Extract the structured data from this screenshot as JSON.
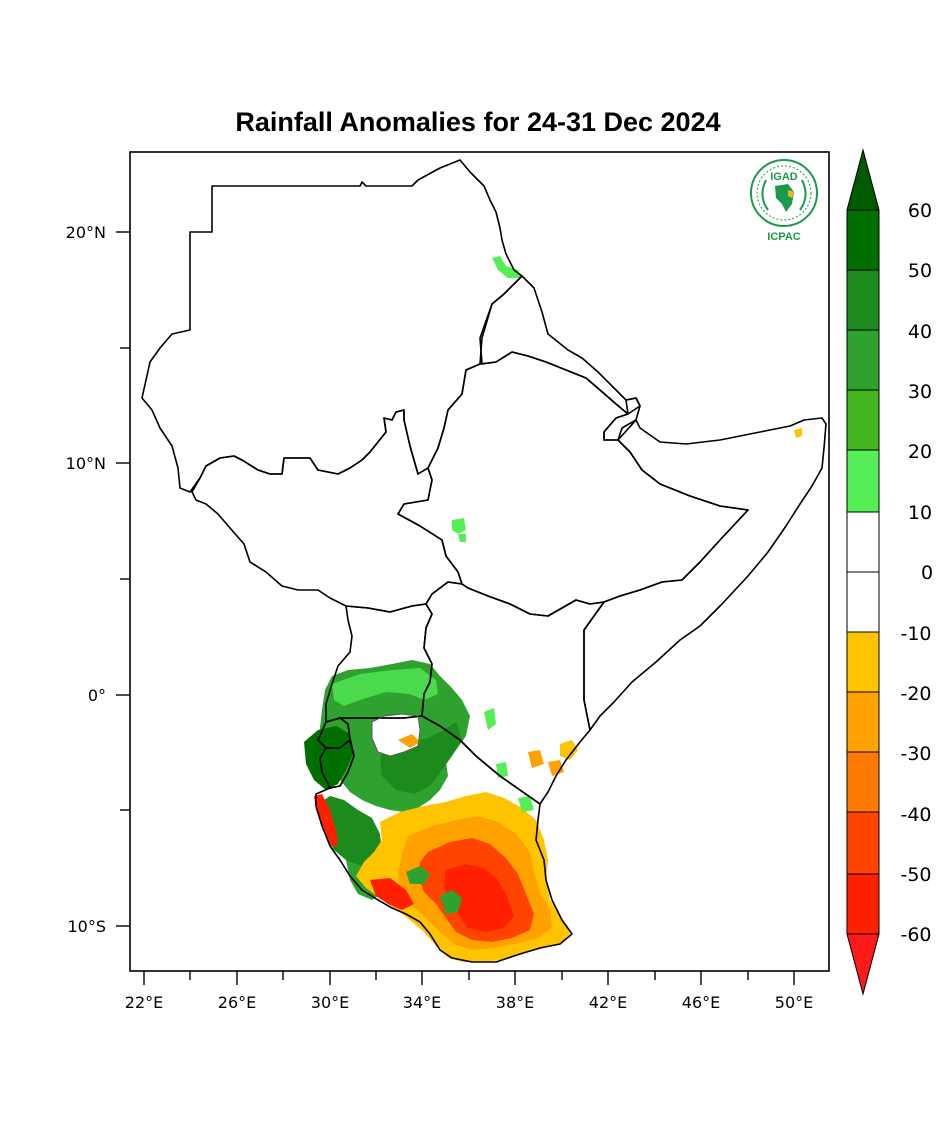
{
  "title": "Rainfall Anomalies for 24-31 Dec 2024",
  "map": {
    "lon_ticks": [
      "22°E",
      "26°E",
      "30°E",
      "34°E",
      "38°E",
      "42°E",
      "46°E",
      "50°E"
    ],
    "lat_ticks": [
      "20°N",
      "10°N",
      "0°",
      "10°S"
    ]
  },
  "colorbar": {
    "levels": [
      "60",
      "50",
      "40",
      "30",
      "20",
      "10",
      "0",
      "-10",
      "-20",
      "-30",
      "-40",
      "-50",
      "-60"
    ],
    "colors": {
      "gt60": "#005b00",
      "50_60": "#006f00",
      "40_50": "#1c8a1c",
      "30_40": "#2fa12f",
      "20_30": "#44b51f",
      "10_20": "#56ee56",
      "neutral": "#ffffff",
      "m10_m20": "#ffc400",
      "m20_m30": "#ffa200",
      "m30_m40": "#ff7b00",
      "m40_m50": "#ff4400",
      "m50_m60": "#ff2000",
      "lt_m60": "#ff1a1a"
    }
  },
  "logo": {
    "top_text": "IGAD",
    "bottom_text": "ICPAC",
    "color": "#1a9a4a",
    "accent": "#f2b21c"
  }
}
